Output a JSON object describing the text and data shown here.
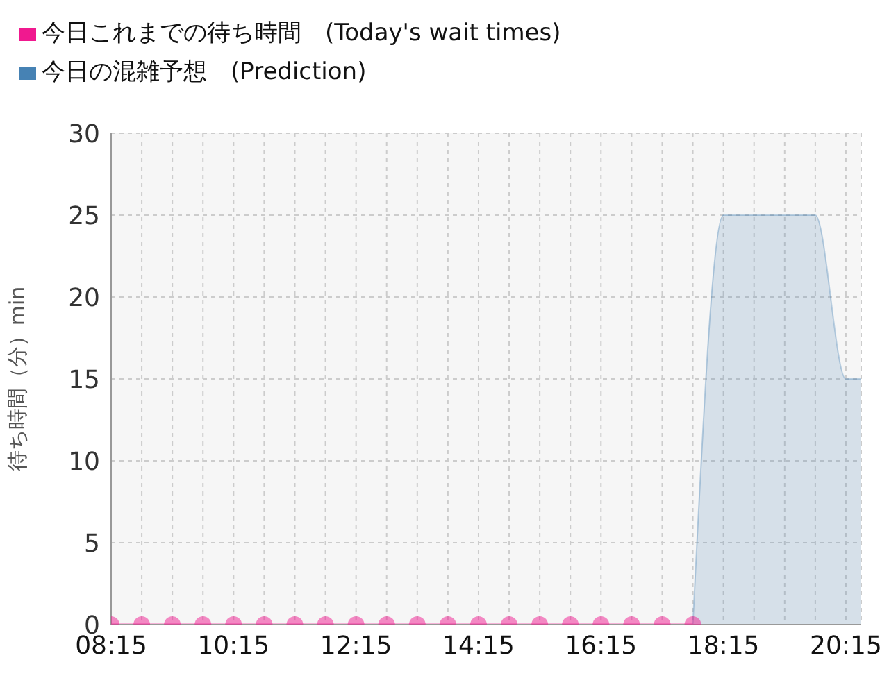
{
  "chart_data": {
    "type": "line",
    "ylabel": "待ち時間（分）min",
    "x": [
      8.25,
      8.75,
      9.25,
      9.75,
      10.25,
      10.75,
      11.25,
      11.75,
      12.25,
      12.75,
      13.25,
      13.75,
      14.25,
      14.75,
      15.25,
      15.75,
      16.25,
      16.75,
      17.25,
      17.75
    ],
    "series": [
      {
        "name": "今日これまでの待ち時間　(Today's wait times)",
        "color": "#f0198f",
        "values": [
          0,
          0,
          0,
          0,
          0,
          0,
          0,
          0,
          0,
          0,
          0,
          0,
          0,
          0,
          0,
          0,
          0,
          0,
          0,
          0
        ],
        "marker": "circle"
      },
      {
        "name": "今日の混雑予想　(Prediction)",
        "type": "area",
        "color": "#4682b4",
        "x": [
          17.75,
          18.25,
          18.75,
          19.25,
          19.75,
          20.25,
          20.5
        ],
        "values": [
          0,
          25,
          25,
          25,
          25,
          15,
          15
        ],
        "marker": "none"
      }
    ],
    "xlim": [
      8.25,
      20.5
    ],
    "xticks": [
      {
        "value": 8.25,
        "label": "08:15"
      },
      {
        "value": 8.75,
        "label": null
      },
      {
        "value": 9.25,
        "label": null
      },
      {
        "value": 9.75,
        "label": null
      },
      {
        "value": 10.25,
        "label": "10:15"
      },
      {
        "value": 10.75,
        "label": null
      },
      {
        "value": 11.25,
        "label": null
      },
      {
        "value": 11.75,
        "label": null
      },
      {
        "value": 12.25,
        "label": "12:15"
      },
      {
        "value": 12.75,
        "label": null
      },
      {
        "value": 13.25,
        "label": null
      },
      {
        "value": 13.75,
        "label": null
      },
      {
        "value": 14.25,
        "label": "14:15"
      },
      {
        "value": 14.75,
        "label": null
      },
      {
        "value": 15.25,
        "label": null
      },
      {
        "value": 15.75,
        "label": null
      },
      {
        "value": 16.25,
        "label": "16:15"
      },
      {
        "value": 16.75,
        "label": null
      },
      {
        "value": 17.25,
        "label": null
      },
      {
        "value": 17.75,
        "label": null
      },
      {
        "value": 18.25,
        "label": "18:15"
      },
      {
        "value": 18.75,
        "label": null
      },
      {
        "value": 19.25,
        "label": null
      },
      {
        "value": 19.75,
        "label": null
      },
      {
        "value": 20.25,
        "label": "20:15"
      }
    ],
    "ylim": [
      0,
      30
    ],
    "yticks": [
      0,
      5,
      10,
      15,
      20,
      25,
      30
    ],
    "grid": true,
    "legend": "top left"
  }
}
